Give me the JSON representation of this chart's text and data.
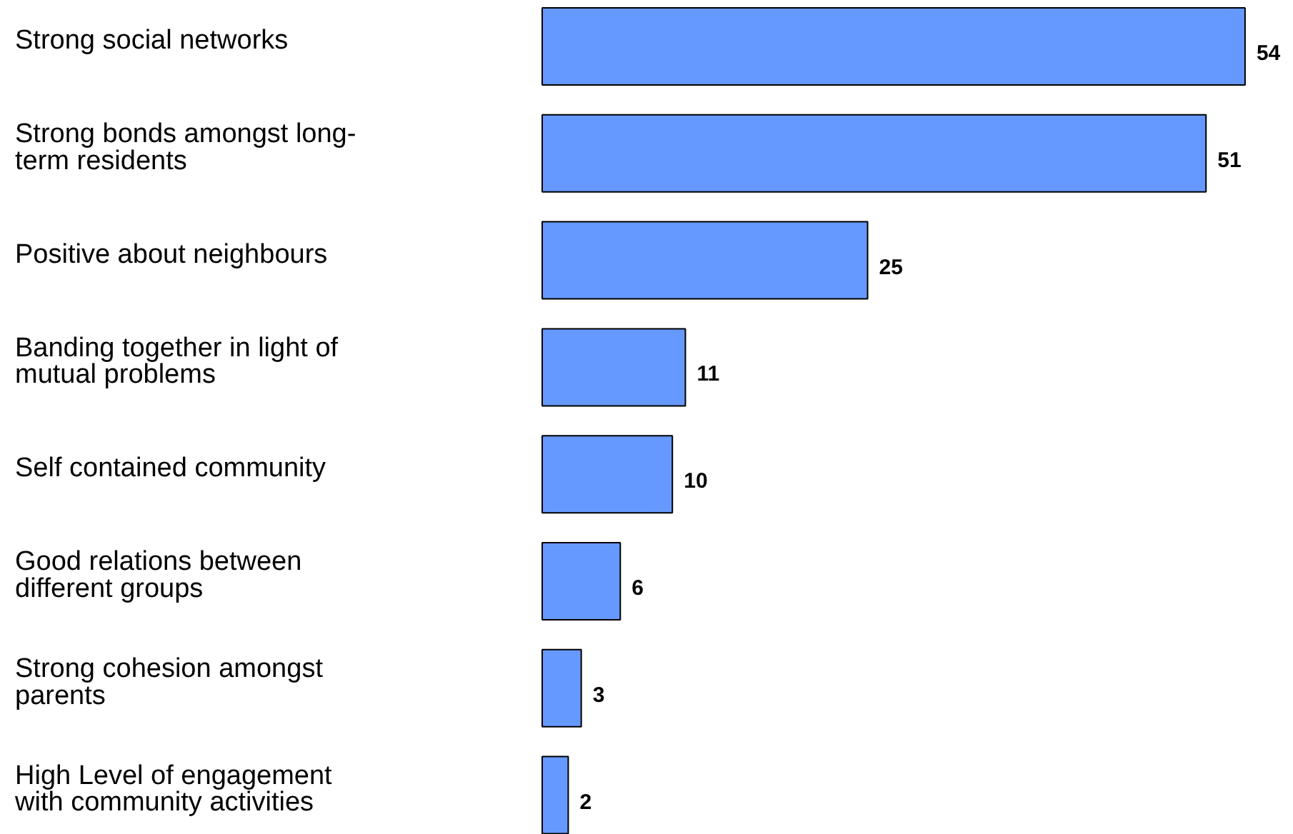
{
  "chart_data": {
    "type": "bar",
    "orientation": "horizontal",
    "categories": [
      "Strong social networks",
      "Strong bonds amongst long-\nterm residents",
      "Positive about neighbours",
      "Banding together in light of\nmutual problems",
      "Self contained community",
      "Good relations between\ndifferent groups",
      "Strong cohesion amongst\nparents",
      "High Level of engagement\nwith community activities"
    ],
    "values": [
      54,
      51,
      25,
      11,
      10,
      6,
      3,
      2
    ],
    "color": "#6699ff",
    "data_labels": true
  }
}
